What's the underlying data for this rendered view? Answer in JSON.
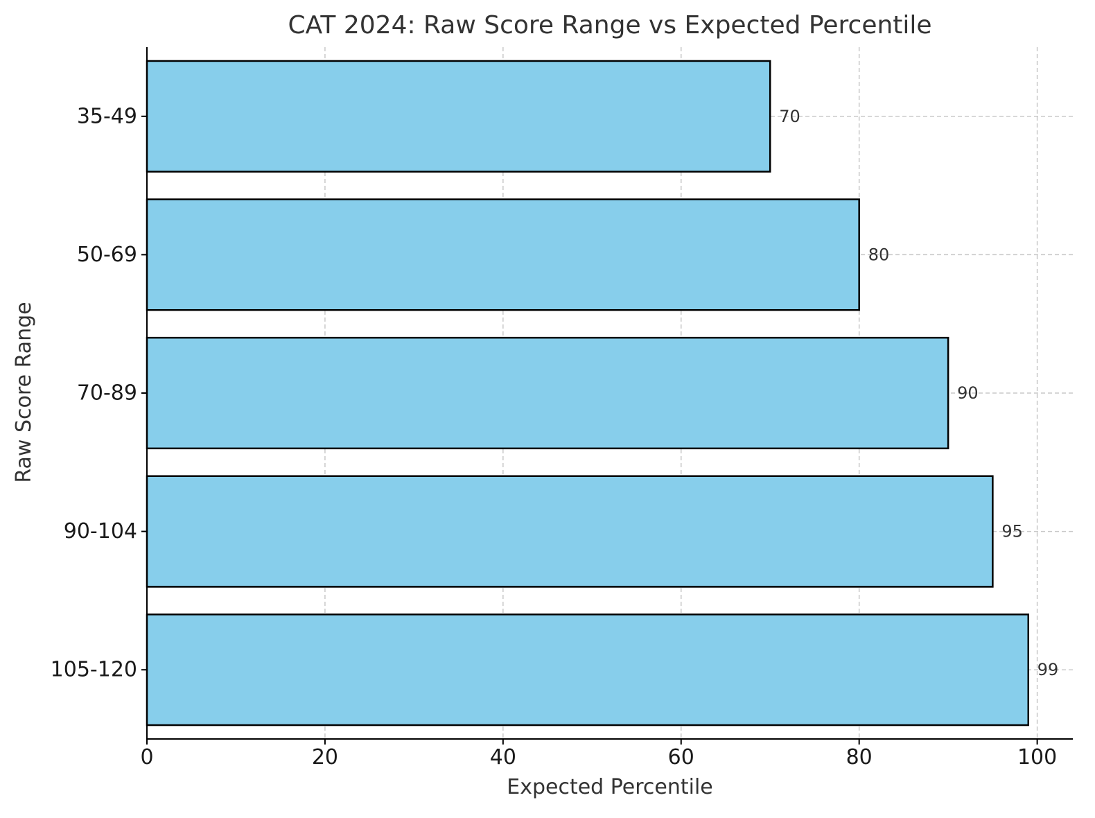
{
  "chart_data": {
    "type": "bar",
    "orientation": "horizontal",
    "title": "CAT 2024: Raw Score Range vs Expected Percentile",
    "xlabel": "Expected Percentile",
    "ylabel": "Raw Score Range",
    "categories": [
      "35-49",
      "50-69",
      "70-89",
      "90-104",
      "105-120"
    ],
    "values": [
      70,
      80,
      90,
      95,
      99
    ],
    "data_labels": [
      "70",
      "80",
      "90",
      "95",
      "99"
    ],
    "xlim": [
      0,
      104
    ],
    "xticks": [
      0,
      20,
      40,
      60,
      80,
      100
    ],
    "grid": true,
    "bar_color": "#87ceeb",
    "bar_edge_color": "#000000"
  }
}
